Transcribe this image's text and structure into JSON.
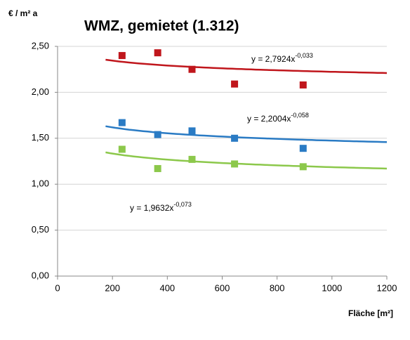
{
  "chart_data": {
    "type": "scatter",
    "title": "WMZ, gemietet (1.312)",
    "y_label": "€ / m² a",
    "x_label": "Fläche [m²]",
    "x": [
      235,
      365,
      490,
      645,
      895
    ],
    "series": [
      {
        "color": "#c0161c",
        "values": [
          2.4,
          2.43,
          2.25,
          2.09,
          2.08
        ],
        "trend": {
          "a": 2.7924,
          "b": -0.033,
          "base_label": "y = 2,7924x",
          "exponent_label": "-0,033"
        }
      },
      {
        "color": "#2a7bc4",
        "values": [
          1.67,
          1.54,
          1.58,
          1.5,
          1.39
        ],
        "trend": {
          "a": 2.2004,
          "b": -0.058,
          "base_label": "y = 2,2004x",
          "exponent_label": "-0,058"
        }
      },
      {
        "color": "#8cc84b",
        "values": [
          1.38,
          1.17,
          1.27,
          1.22,
          1.19
        ],
        "trend": {
          "a": 1.9632,
          "b": -0.073,
          "base_label": "y = 1,9632x",
          "exponent_label": "-0,073"
        }
      }
    ],
    "trend_xlim": [
      175,
      1200
    ],
    "xlim": [
      0,
      1200
    ],
    "xticks": [
      0,
      200,
      400,
      600,
      800,
      1000,
      1200
    ],
    "ylim": [
      0,
      2.5
    ],
    "yticks": [
      {
        "value": 0,
        "label": "0,00"
      },
      {
        "value": 0.5,
        "label": "0,50"
      },
      {
        "value": 1,
        "label": "1,00"
      },
      {
        "value": 1.5,
        "label": "1,50"
      },
      {
        "value": 2,
        "label": "2,00"
      },
      {
        "value": 2.5,
        "label": "2,50"
      }
    ],
    "grid": true
  }
}
